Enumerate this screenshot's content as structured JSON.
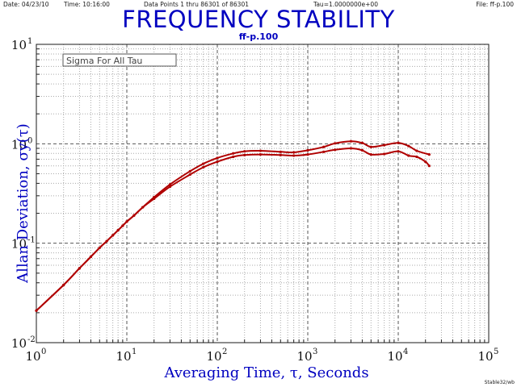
{
  "header": {
    "date": "Date: 04/23/10",
    "time": "Time: 10:16:00",
    "points": "Data Points 1 thru 86301 of 86301",
    "tau": "Tau=1.0000000e+00",
    "file": "File: ff-p.100"
  },
  "footnote": "Stable32/wb",
  "chart_data": {
    "type": "line",
    "title": "FREQUENCY STABILITY",
    "subtitle": "ff-p.100",
    "annotation": "Sigma For All Tau",
    "xlabel": "Averaging Time, τ, Seconds",
    "ylabel": "Allan Deviation, σy(τ)",
    "xscale": "log",
    "yscale": "log",
    "xlim": [
      1,
      100000
    ],
    "ylim": [
      0.01,
      10
    ],
    "x_ticks": [
      {
        "base": "10",
        "exp": "0"
      },
      {
        "base": "10",
        "exp": "1"
      },
      {
        "base": "10",
        "exp": "2"
      },
      {
        "base": "10",
        "exp": "3"
      },
      {
        "base": "10",
        "exp": "4"
      },
      {
        "base": "10",
        "exp": "5"
      }
    ],
    "y_ticks": [
      {
        "base": "10",
        "exp": "-2"
      },
      {
        "base": "10",
        "exp": "-1"
      },
      {
        "base": "10",
        "exp": "0"
      },
      {
        "base": "10",
        "exp": "1"
      }
    ],
    "grid": true,
    "series_color": "#b00000",
    "series": [
      {
        "x": [
          1,
          2,
          3,
          4,
          5,
          6,
          7,
          8,
          9,
          10,
          12,
          15,
          20,
          30,
          50,
          70,
          100,
          150,
          200,
          300,
          500,
          700,
          1000,
          1500,
          2000,
          3000,
          4000,
          5000,
          7000,
          10000,
          13000,
          16000,
          22000
        ],
        "y": [
          0.021,
          0.038,
          0.056,
          0.073,
          0.09,
          0.105,
          0.12,
          0.135,
          0.15,
          0.165,
          0.19,
          0.23,
          0.29,
          0.39,
          0.53,
          0.63,
          0.72,
          0.8,
          0.84,
          0.85,
          0.83,
          0.82,
          0.86,
          0.93,
          1.01,
          1.06,
          1.02,
          0.93,
          0.97,
          1.02,
          0.95,
          0.85,
          0.78
        ]
      },
      {
        "x": [
          1,
          2,
          3,
          4,
          5,
          6,
          7,
          8,
          9,
          10,
          12,
          15,
          20,
          30,
          50,
          70,
          100,
          150,
          200,
          300,
          500,
          700,
          1000,
          1500,
          2000,
          3000,
          4000,
          5000,
          7000,
          10000,
          13000,
          16000,
          20000,
          22000
        ],
        "y": [
          0.021,
          0.038,
          0.056,
          0.073,
          0.09,
          0.105,
          0.12,
          0.135,
          0.15,
          0.165,
          0.19,
          0.23,
          0.28,
          0.37,
          0.49,
          0.58,
          0.66,
          0.74,
          0.77,
          0.78,
          0.77,
          0.76,
          0.78,
          0.83,
          0.87,
          0.9,
          0.86,
          0.78,
          0.79,
          0.84,
          0.76,
          0.74,
          0.66,
          0.6
        ]
      }
    ]
  }
}
